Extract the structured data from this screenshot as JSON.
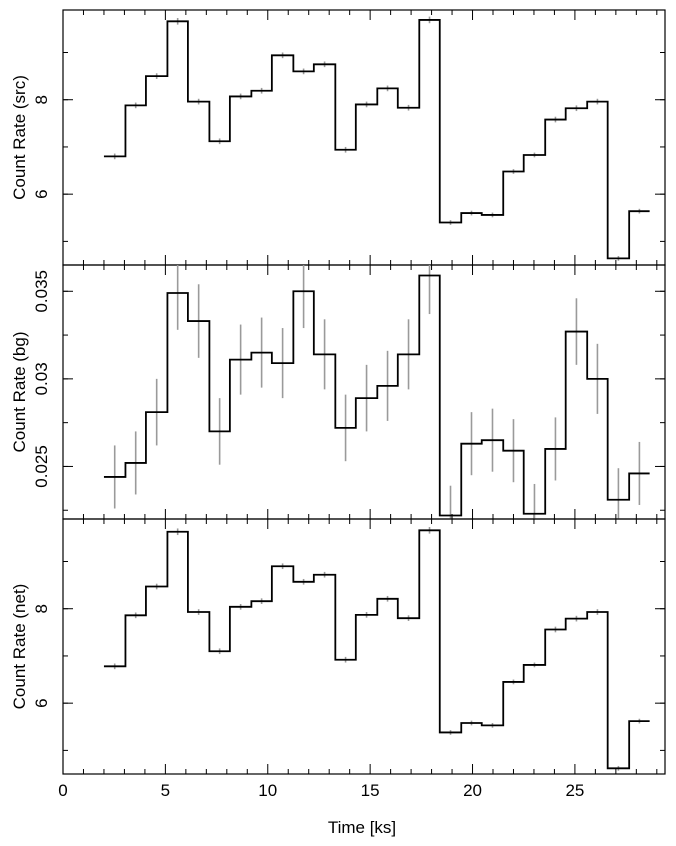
{
  "chart_data": {
    "type": "line",
    "style": "step histogram with error bars",
    "colors": {
      "line": "#000000",
      "error_bars": "#9a9a9a"
    },
    "xlabel": "Time [ks]",
    "xlim": [
      0,
      29.4
    ],
    "xticks": [
      0,
      5,
      10,
      15,
      20,
      25
    ],
    "bin_edges": [
      2.0,
      3.05,
      4.05,
      5.1,
      6.1,
      7.15,
      8.15,
      9.2,
      10.2,
      11.25,
      12.25,
      13.3,
      14.3,
      15.35,
      16.35,
      17.4,
      18.4,
      19.45,
      20.45,
      21.5,
      22.5,
      23.55,
      24.55,
      25.6,
      26.6,
      27.65,
      28.65
    ],
    "panels": [
      {
        "name": "src",
        "ylabel": "Count Rate (src)",
        "ylim": [
          4.5,
          9.9
        ],
        "yticks": [
          6,
          8
        ],
        "ytick_labels": [
          "6",
          "8"
        ],
        "values": [
          6.8,
          7.88,
          8.5,
          9.66,
          7.96,
          7.12,
          8.07,
          8.19,
          8.94,
          8.6,
          8.75,
          6.94,
          7.9,
          8.24,
          7.83,
          9.69,
          5.4,
          5.6,
          5.56,
          6.48,
          6.83,
          7.58,
          7.82,
          7.96,
          4.64,
          5.64
        ],
        "errors": [
          0.06,
          0.06,
          0.06,
          0.07,
          0.06,
          0.06,
          0.06,
          0.06,
          0.06,
          0.06,
          0.06,
          0.06,
          0.06,
          0.06,
          0.06,
          0.07,
          0.05,
          0.05,
          0.05,
          0.05,
          0.05,
          0.06,
          0.06,
          0.06,
          0.05,
          0.05
        ]
      },
      {
        "name": "bg",
        "ylabel": "Count Rate (bg)",
        "ylim": [
          0.022,
          0.0365
        ],
        "yticks": [
          0.025,
          0.03,
          0.035
        ],
        "ytick_labels": [
          "0.025",
          "0.03",
          "0.035"
        ],
        "values": [
          0.0244,
          0.0252,
          0.0281,
          0.0349,
          0.0333,
          0.027,
          0.0311,
          0.0315,
          0.0309,
          0.035,
          0.0314,
          0.0272,
          0.0289,
          0.0296,
          0.0314,
          0.0359,
          0.0222,
          0.0263,
          0.0265,
          0.0259,
          0.0223,
          0.026,
          0.0327,
          0.03,
          0.0231,
          0.0246
        ],
        "errors": [
          0.0018,
          0.0018,
          0.0019,
          0.0021,
          0.0021,
          0.0019,
          0.002,
          0.002,
          0.002,
          0.0021,
          0.002,
          0.0019,
          0.0019,
          0.002,
          0.002,
          0.0022,
          0.0017,
          0.0018,
          0.0018,
          0.0018,
          0.0017,
          0.0018,
          0.0019,
          0.002,
          0.0018,
          0.0018
        ]
      },
      {
        "name": "net",
        "ylabel": "Count Rate (net)",
        "ylim": [
          4.5,
          9.9
        ],
        "yticks": [
          6,
          8
        ],
        "ytick_labels": [
          "6",
          "8"
        ],
        "values": [
          6.78,
          7.86,
          8.47,
          9.63,
          7.93,
          7.1,
          8.04,
          8.16,
          8.9,
          8.57,
          8.72,
          6.92,
          7.87,
          8.21,
          7.8,
          9.66,
          5.38,
          5.58,
          5.53,
          6.45,
          6.81,
          7.56,
          7.79,
          7.93,
          4.62,
          5.62
        ],
        "errors": [
          0.06,
          0.06,
          0.06,
          0.07,
          0.06,
          0.06,
          0.06,
          0.06,
          0.06,
          0.06,
          0.06,
          0.06,
          0.06,
          0.06,
          0.06,
          0.07,
          0.05,
          0.05,
          0.05,
          0.05,
          0.05,
          0.06,
          0.06,
          0.06,
          0.05,
          0.05
        ]
      }
    ]
  }
}
